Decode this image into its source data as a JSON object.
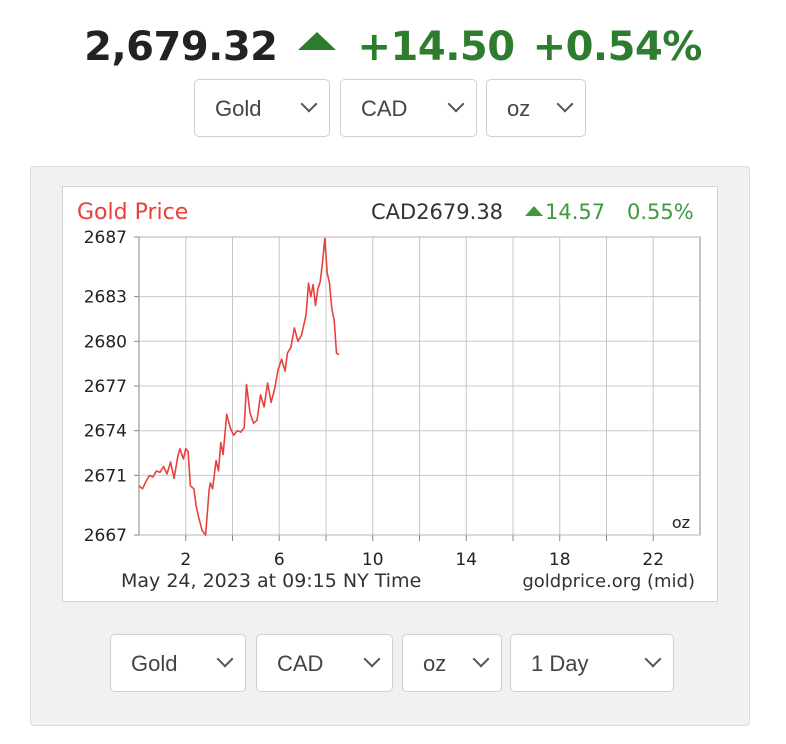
{
  "ticker": {
    "price": "2,679.32",
    "direction_icon": "up-triangle-icon",
    "change": "+14.50",
    "percent": "+0.54%",
    "color_up": "#2e7d2e"
  },
  "top_selects": {
    "metal": "Gold",
    "currency": "CAD",
    "unit": "oz"
  },
  "bottom_selects": {
    "metal": "Gold",
    "currency": "CAD",
    "unit": "oz",
    "range": "1 Day"
  },
  "chart_header": {
    "title": "Gold Price",
    "quote": "CAD2679.38",
    "change": "14.57",
    "percent": "0.55%",
    "title_color": "#e8413c",
    "change_color": "#3f9a3f"
  },
  "chart_footer": {
    "timestamp": "May 24, 2023 at 09:15 NY Time",
    "source": "goldprice.org (mid)",
    "unit": "oz"
  },
  "chart_data": {
    "type": "line",
    "title": "Gold Price",
    "xlabel": "",
    "ylabel": "",
    "xlim": [
      0,
      24
    ],
    "ylim": [
      2667,
      2687
    ],
    "x_ticks": [
      2,
      4,
      6,
      8,
      10,
      12,
      14,
      16,
      18,
      20,
      22
    ],
    "x_tick_labels": [
      "2",
      "6",
      "10",
      "14",
      "18",
      "22"
    ],
    "y_ticks": [
      2667,
      2671,
      2674,
      2677,
      2680,
      2683,
      2687
    ],
    "grid": true,
    "line_color": "#e8413c",
    "series": [
      {
        "x": [
          0.0,
          0.15,
          0.3,
          0.45,
          0.6,
          0.75,
          0.9,
          1.05,
          1.2,
          1.35,
          1.5,
          1.65,
          1.75,
          1.9,
          2.0,
          2.1,
          2.2,
          2.35,
          2.45,
          2.55,
          2.7,
          2.85,
          3.0,
          3.05,
          3.15,
          3.3,
          3.4,
          3.5,
          3.6,
          3.75,
          3.9,
          4.05,
          4.2,
          4.35,
          4.5,
          4.6,
          4.75,
          4.9,
          5.05,
          5.2,
          5.35,
          5.5,
          5.65,
          5.8,
          5.95,
          6.1,
          6.25,
          6.35,
          6.5,
          6.65,
          6.8,
          6.95,
          7.05,
          7.15,
          7.25,
          7.35,
          7.45,
          7.55,
          7.65,
          7.75,
          7.85,
          7.95,
          8.05,
          8.15,
          8.25,
          8.35,
          8.45,
          8.55,
          8.65,
          8.75,
          8.85,
          8.95,
          9.05
        ],
        "y": [
          2670.3,
          2670.1,
          2670.6,
          2671.0,
          2670.9,
          2671.3,
          2671.2,
          2671.6,
          2671.1,
          2671.9,
          2670.8,
          2672.2,
          2672.8,
          2672.1,
          2672.8,
          2672.6,
          2670.3,
          2670.1,
          2668.9,
          2668.2,
          2667.3,
          2667.0,
          2670.0,
          2670.5,
          2670.1,
          2672.0,
          2671.3,
          2673.2,
          2672.4,
          2675.1,
          2674.2,
          2673.7,
          2674.0,
          2673.9,
          2674.2,
          2677.1,
          2675.2,
          2674.5,
          2674.7,
          2676.4,
          2675.6,
          2677.2,
          2675.9,
          2676.8,
          2678.1,
          2678.8,
          2678.0,
          2679.2,
          2679.6,
          2680.9,
          2680.0,
          2680.4,
          2681.1,
          2681.8,
          2683.9,
          2683.0,
          2683.8,
          2682.4,
          2683.5,
          2684.0,
          2685.3,
          2686.9,
          2684.6,
          2683.9,
          2682.2,
          2681.4,
          2679.2,
          2679.1,
          null,
          null,
          null,
          null,
          null
        ]
      }
    ]
  }
}
